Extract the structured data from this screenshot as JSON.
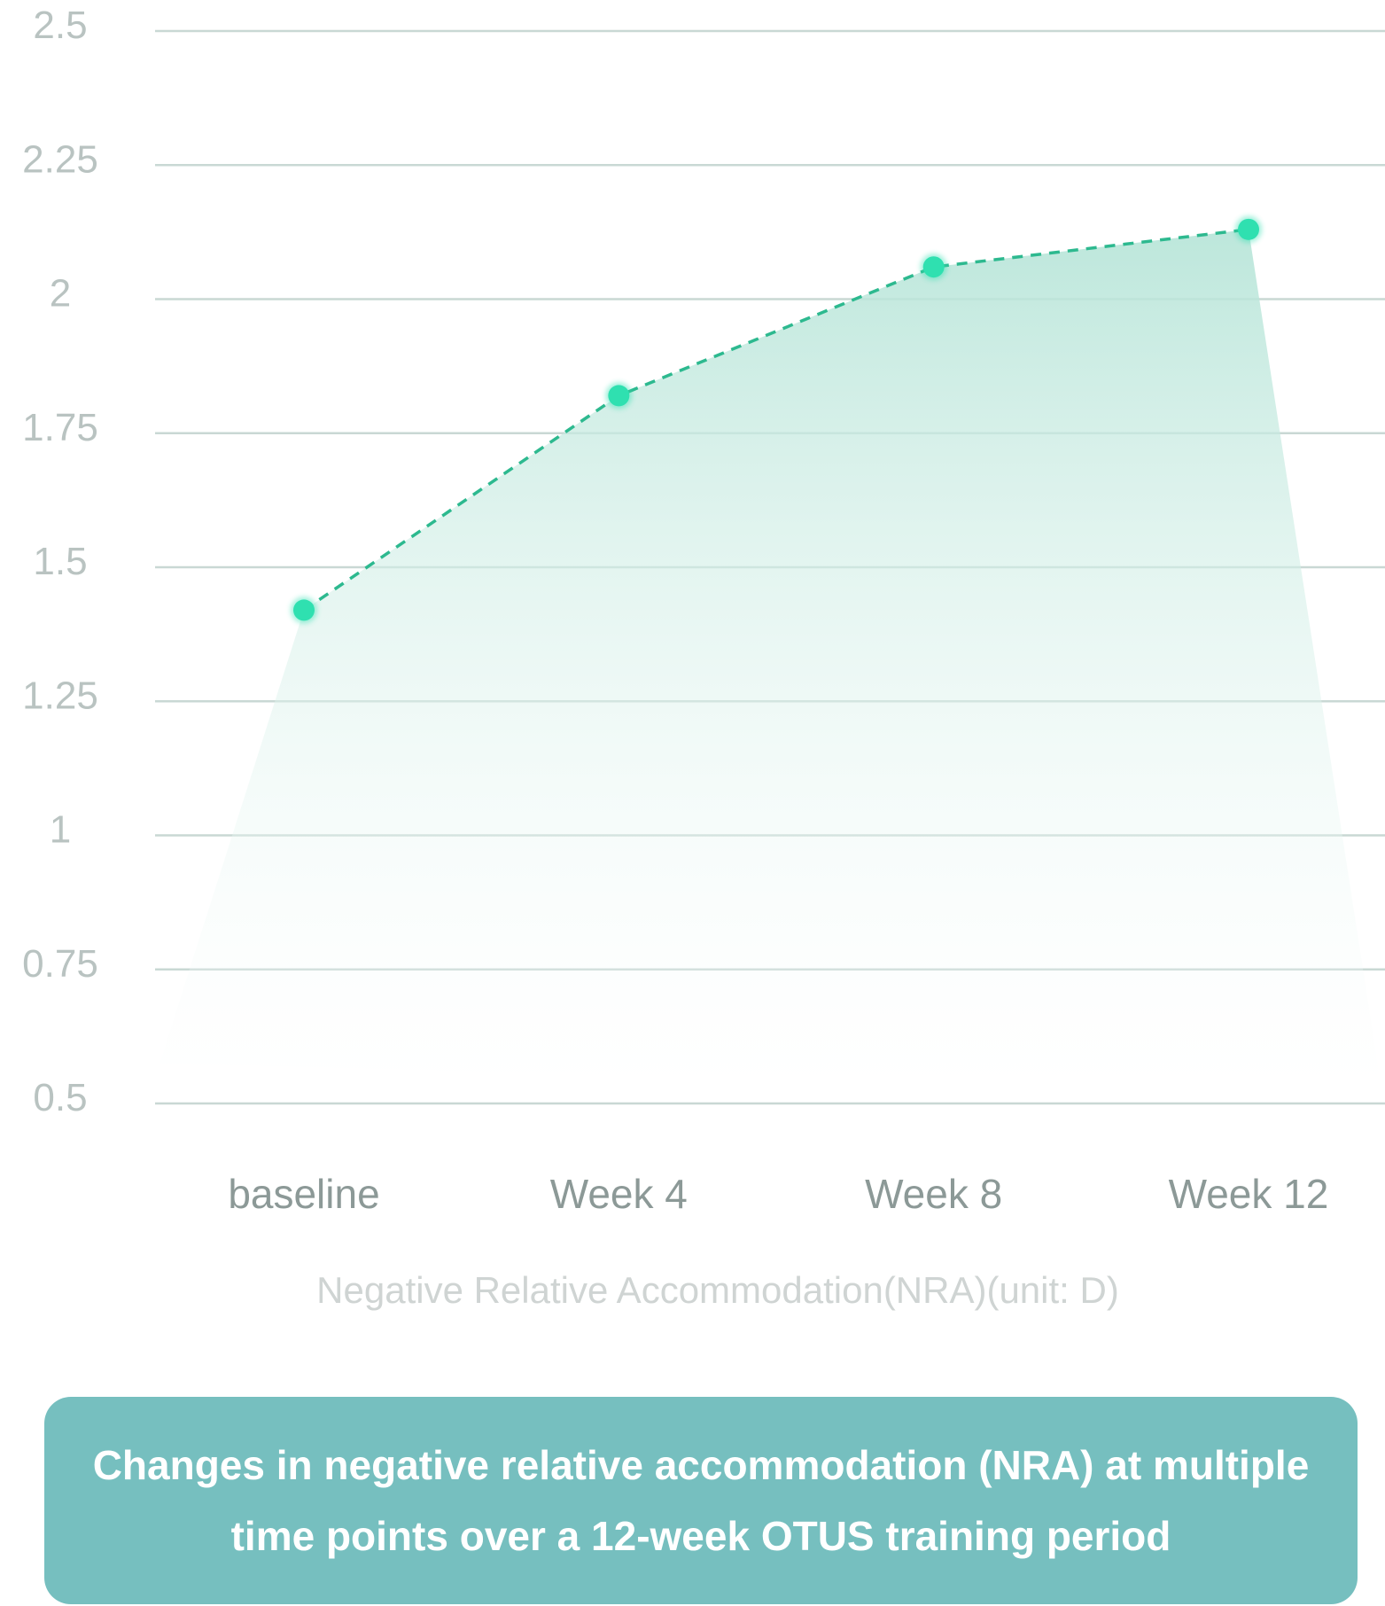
{
  "colors": {
    "accent": "#76bfbf",
    "line": "#2db98f",
    "marker": "#2fe0b0",
    "area_top": "#b5e4d7"
  },
  "chart_data": {
    "type": "area",
    "categories": [
      "baseline",
      "Week 4",
      "Week 8",
      "Week 12"
    ],
    "series": [
      {
        "values": [
          1.42,
          1.82,
          2.06,
          2.13
        ]
      }
    ],
    "ylim": [
      0.5,
      2.5
    ],
    "yticks": [
      "2.5",
      "2.25",
      "2",
      "1.75",
      "1.5",
      "1.25",
      "1",
      "0.75",
      "0.5"
    ],
    "xlabel": "Negative Relative Accommodation(NRA)(unit: D)",
    "ylabel": "",
    "grid": true,
    "line_style": "dashed",
    "legend": "none"
  },
  "caption": {
    "line1": "Changes in negative relative accommodation (NRA) at multiple",
    "line2": "time points over a 12-week OTUS training period"
  }
}
